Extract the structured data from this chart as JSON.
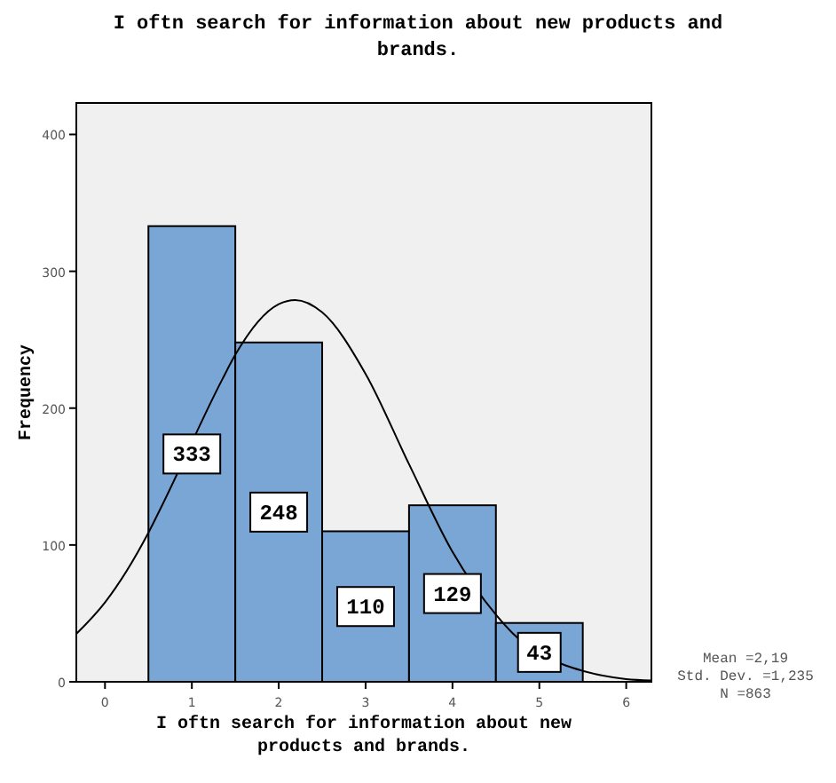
{
  "chart_data": {
    "type": "histogram",
    "title": "I oftn search for information about new products and brands.",
    "xlabel": "I oftn search for information about new products and brands.",
    "ylabel": "Frequency",
    "bins": [
      0.5,
      1.5,
      2.5,
      3.5,
      4.5,
      5.5
    ],
    "values": [
      333,
      248,
      110,
      129,
      43
    ],
    "color": "#7aa6d6",
    "value_labels": [
      "333",
      "248",
      "110",
      "129",
      "43"
    ],
    "series": [
      {
        "type": "line",
        "color": "#000000",
        "x": [
          -0.33,
          0,
          0.5,
          0.65,
          1.35,
          1.5,
          2,
          2.19,
          2.5,
          3,
          3.5,
          4,
          4.5,
          4.7,
          5.3,
          5.5,
          6,
          6.29
        ],
        "values": [
          35,
          58,
          109,
          128,
          221,
          239,
          276,
          279,
          270,
          225,
          159,
          95,
          49,
          35,
          12,
          8,
          2,
          1
        ]
      }
    ],
    "xlim": [
      -0.33,
      6.29
    ],
    "xticks": [
      0,
      1,
      2,
      3,
      4,
      5,
      6
    ],
    "ylim": [
      0,
      423
    ],
    "yticks": [
      0,
      100,
      200,
      300,
      400
    ],
    "grid": false,
    "annotations": [
      "Mean =2,19",
      "Std. Dev. =1,235",
      "N =863"
    ]
  }
}
